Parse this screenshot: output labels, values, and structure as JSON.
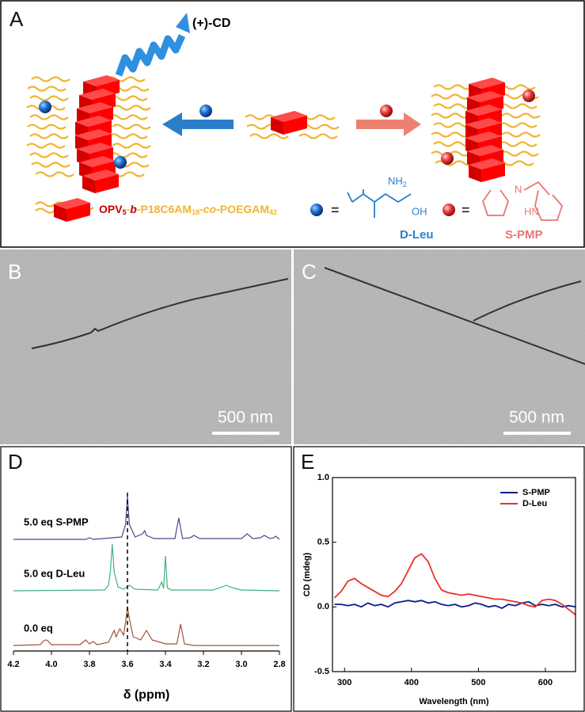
{
  "panels": {
    "a": {
      "letter": "A",
      "cd_label": "(+)-CD",
      "formula": [
        "OPV",
        "5",
        "-",
        "b",
        "-P18C6AM",
        "18",
        "-",
        "co",
        "-POEGAM",
        "42"
      ],
      "equals": "=",
      "d_leu": {
        "nh": "NH",
        "sub": "2",
        "oh": "OH",
        "name": "D-Leu"
      },
      "s_pmp": {
        "n": "N",
        "hn": "HN",
        "name": "S-PMP"
      }
    },
    "b": {
      "letter": "B",
      "scale_bar": "500 nm"
    },
    "c": {
      "letter": "C",
      "scale_bar": "500 nm"
    },
    "d": {
      "letter": "D"
    },
    "e": {
      "letter": "E"
    }
  },
  "chart_data": [
    {
      "type": "spectra",
      "x_label": "δ (ppm)",
      "xlim": [
        4.2,
        2.8
      ],
      "xticks": [
        4.2,
        {
          "value": 4.0,
          "label": "4.0"
        },
        3.8,
        3.6,
        3.4,
        3.2,
        {
          "value": 3.0,
          "label": "3.0"
        },
        2.8
      ],
      "marker_x": 3.6,
      "series": [
        {
          "name": "5.0 eq S-PMP",
          "color": "#4a4a8c",
          "x": [
            4.2,
            3.82,
            3.8,
            3.78,
            3.63,
            3.61,
            3.6,
            3.59,
            3.56,
            3.52,
            3.51,
            3.5,
            3.46,
            3.35,
            3.33,
            3.31,
            3.27,
            3.25,
            3.22,
            3.0,
            2.97,
            2.94,
            2.9,
            2.88,
            2.85,
            2.83,
            2.82,
            2.8
          ],
          "values": [
            1,
            1,
            3,
            1,
            4,
            20,
            55,
            20,
            4,
            8,
            12,
            6,
            2,
            2,
            28,
            2,
            3,
            6,
            2,
            2,
            8,
            2,
            3,
            6,
            2,
            3,
            5,
            1
          ]
        },
        {
          "name": "5.0 eq D-Leu",
          "color": "#3fb37f",
          "x": [
            4.2,
            3.72,
            3.7,
            3.69,
            3.68,
            3.67,
            3.65,
            3.62,
            3.59,
            3.56,
            3.44,
            3.42,
            3.41,
            3.4,
            3.39,
            3.37,
            3.15,
            3.1,
            3.08,
            3.05,
            3.0,
            2.8
          ],
          "values": [
            1,
            2,
            8,
            25,
            60,
            25,
            6,
            3,
            8,
            3,
            2,
            12,
            4,
            45,
            5,
            2,
            2,
            6,
            8,
            5,
            2,
            1
          ]
        },
        {
          "name": "0.0 eq",
          "color": "#a0533a",
          "x": [
            4.2,
            4.06,
            4.04,
            4.03,
            4.02,
            4.0,
            3.85,
            3.82,
            3.8,
            3.78,
            3.76,
            3.7,
            3.67,
            3.66,
            3.64,
            3.62,
            3.61,
            3.6,
            3.59,
            3.57,
            3.53,
            3.5,
            3.47,
            3.4,
            3.34,
            3.32,
            3.3,
            3.25,
            2.8
          ],
          "values": [
            1,
            2,
            7,
            8,
            7,
            2,
            2,
            8,
            3,
            6,
            2,
            5,
            20,
            12,
            22,
            14,
            30,
            50,
            35,
            12,
            8,
            20,
            8,
            3,
            3,
            28,
            3,
            1,
            1
          ]
        }
      ]
    },
    {
      "type": "line",
      "x_label": "Wavelength (nm)",
      "y_label": "CD (mdeg)",
      "xlim": [
        282,
        645
      ],
      "ylim": [
        -0.5,
        1.0
      ],
      "xticks": [
        300,
        400,
        500,
        600
      ],
      "yticks": [
        -0.5,
        {
          "value": 0,
          "label": "0.0"
        },
        0.5,
        {
          "value": 1,
          "label": "1.0"
        }
      ],
      "legend": "upper right",
      "x": [
        285,
        295,
        305,
        315,
        325,
        335,
        345,
        355,
        365,
        375,
        385,
        395,
        405,
        415,
        425,
        435,
        445,
        455,
        465,
        475,
        485,
        495,
        505,
        515,
        525,
        535,
        545,
        555,
        565,
        575,
        585,
        595,
        605,
        615,
        625,
        635,
        645
      ],
      "series": [
        {
          "name": "S-PMP",
          "color": "#0d1f8a",
          "values": [
            0.02,
            0.02,
            0.01,
            0.02,
            0.0,
            0.03,
            0.01,
            0.02,
            0.0,
            0.03,
            0.04,
            0.05,
            0.04,
            0.05,
            0.03,
            0.04,
            0.02,
            0.01,
            0.02,
            0.0,
            0.01,
            0.03,
            0.02,
            0.0,
            0.01,
            -0.01,
            0.02,
            0.01,
            0.03,
            0.04,
            0.01,
            0.02,
            0.01,
            0.02,
            0.0,
            0.01,
            0.0
          ]
        },
        {
          "name": "D-Leu",
          "color": "#e8302a",
          "values": [
            0.07,
            0.12,
            0.2,
            0.22,
            0.18,
            0.15,
            0.12,
            0.09,
            0.08,
            0.12,
            0.18,
            0.28,
            0.38,
            0.41,
            0.35,
            0.22,
            0.13,
            0.11,
            0.1,
            0.09,
            0.1,
            0.09,
            0.08,
            0.07,
            0.06,
            0.06,
            0.05,
            0.04,
            0.03,
            0.01,
            0.0,
            0.05,
            0.06,
            0.05,
            0.02,
            -0.02,
            -0.06
          ]
        }
      ]
    }
  ]
}
